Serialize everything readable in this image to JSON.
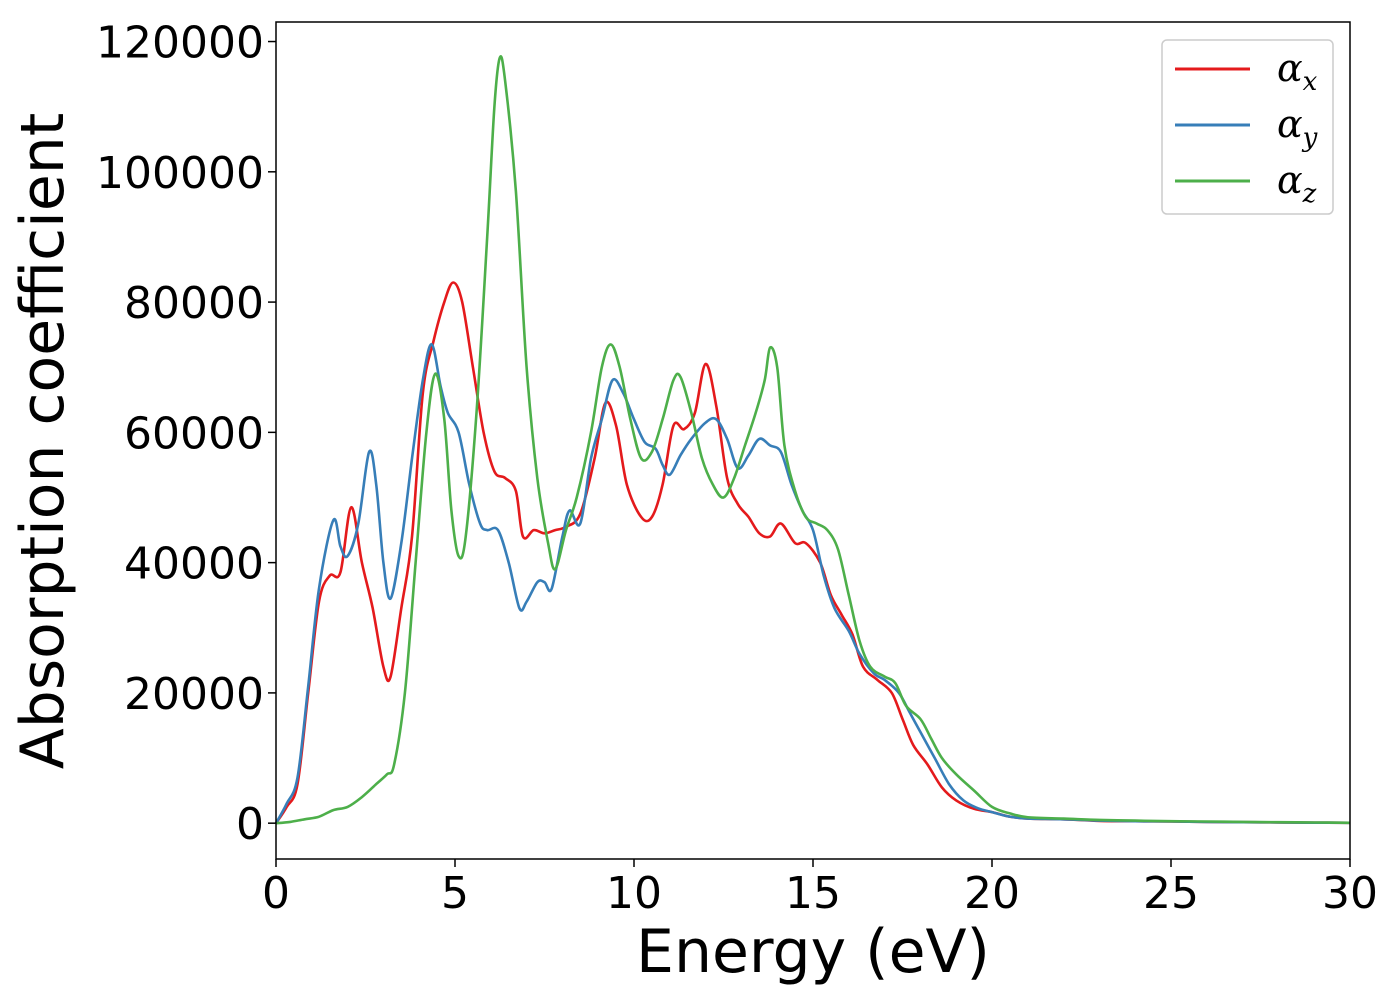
{
  "chart_data": {
    "type": "line",
    "title": "",
    "xlabel": "Energy (eV)",
    "ylabel": "Absorption coefficient",
    "xlim": [
      0,
      30
    ],
    "ylim": [
      -5500,
      123000
    ],
    "xticks": [
      0,
      5,
      10,
      15,
      20,
      25,
      30
    ],
    "yticks": [
      0,
      20000,
      40000,
      60000,
      80000,
      100000,
      120000
    ],
    "grid": false,
    "legend_position": "top-right",
    "series": [
      {
        "name": "α",
        "subscript": "x",
        "color": "#e41a1c",
        "points": [
          [
            0,
            0
          ],
          [
            0.3,
            2500
          ],
          [
            0.6,
            6000
          ],
          [
            0.9,
            20000
          ],
          [
            1.2,
            34000
          ],
          [
            1.5,
            38000
          ],
          [
            1.8,
            38500
          ],
          [
            2.1,
            48500
          ],
          [
            2.4,
            40000
          ],
          [
            2.7,
            33000
          ],
          [
            3.0,
            24000
          ],
          [
            3.2,
            22500
          ],
          [
            3.5,
            33000
          ],
          [
            3.8,
            44000
          ],
          [
            4.1,
            66000
          ],
          [
            4.4,
            74000
          ],
          [
            4.7,
            80000
          ],
          [
            4.95,
            83000
          ],
          [
            5.2,
            80000
          ],
          [
            5.5,
            70000
          ],
          [
            5.8,
            60000
          ],
          [
            6.1,
            54000
          ],
          [
            6.4,
            53000
          ],
          [
            6.7,
            51000
          ],
          [
            6.9,
            44000
          ],
          [
            7.2,
            45000
          ],
          [
            7.5,
            44500
          ],
          [
            7.8,
            45000
          ],
          [
            8.1,
            45500
          ],
          [
            8.5,
            47500
          ],
          [
            8.9,
            56000
          ],
          [
            9.2,
            64500
          ],
          [
            9.5,
            61000
          ],
          [
            9.8,
            52000
          ],
          [
            10.2,
            47000
          ],
          [
            10.5,
            47000
          ],
          [
            10.8,
            52000
          ],
          [
            11.1,
            61000
          ],
          [
            11.4,
            60500
          ],
          [
            11.7,
            63000
          ],
          [
            12.0,
            70500
          ],
          [
            12.3,
            64000
          ],
          [
            12.6,
            53000
          ],
          [
            12.9,
            49000
          ],
          [
            13.2,
            47000
          ],
          [
            13.5,
            44500
          ],
          [
            13.8,
            44000
          ],
          [
            14.1,
            46000
          ],
          [
            14.5,
            43000
          ],
          [
            14.8,
            43000
          ],
          [
            15.2,
            40000
          ],
          [
            15.5,
            35000
          ],
          [
            15.8,
            32000
          ],
          [
            16.1,
            29000
          ],
          [
            16.4,
            24000
          ],
          [
            16.8,
            22000
          ],
          [
            17.2,
            20000
          ],
          [
            17.5,
            16000
          ],
          [
            17.8,
            12000
          ],
          [
            18.2,
            9000
          ],
          [
            18.6,
            5500
          ],
          [
            19.0,
            3500
          ],
          [
            19.5,
            2200
          ],
          [
            20.0,
            1700
          ],
          [
            20.5,
            1000
          ],
          [
            21.0,
            700
          ],
          [
            22,
            600
          ],
          [
            23,
            350
          ],
          [
            24,
            300
          ],
          [
            25,
            250
          ],
          [
            26,
            200
          ],
          [
            27,
            150
          ],
          [
            28,
            120
          ],
          [
            29,
            80
          ],
          [
            30,
            50
          ]
        ]
      },
      {
        "name": "α",
        "subscript": "y",
        "color": "#377eb8",
        "points": [
          [
            0,
            0
          ],
          [
            0.3,
            3000
          ],
          [
            0.6,
            7000
          ],
          [
            0.9,
            21000
          ],
          [
            1.2,
            36000
          ],
          [
            1.6,
            46500
          ],
          [
            1.8,
            42500
          ],
          [
            2.0,
            41000
          ],
          [
            2.3,
            46000
          ],
          [
            2.6,
            57000
          ],
          [
            2.8,
            52000
          ],
          [
            3.0,
            40000
          ],
          [
            3.2,
            34500
          ],
          [
            3.5,
            43000
          ],
          [
            3.8,
            56000
          ],
          [
            4.1,
            68000
          ],
          [
            4.35,
            73500
          ],
          [
            4.6,
            67000
          ],
          [
            4.8,
            63000
          ],
          [
            5.1,
            60000
          ],
          [
            5.4,
            52000
          ],
          [
            5.7,
            46000
          ],
          [
            5.9,
            45000
          ],
          [
            6.2,
            45000
          ],
          [
            6.5,
            40000
          ],
          [
            6.8,
            33000
          ],
          [
            7.0,
            34000
          ],
          [
            7.3,
            37000
          ],
          [
            7.5,
            37000
          ],
          [
            7.7,
            36000
          ],
          [
            8.0,
            44000
          ],
          [
            8.2,
            48000
          ],
          [
            8.5,
            46000
          ],
          [
            8.8,
            56000
          ],
          [
            9.1,
            62000
          ],
          [
            9.4,
            68000
          ],
          [
            9.7,
            66000
          ],
          [
            10.0,
            62000
          ],
          [
            10.3,
            58500
          ],
          [
            10.6,
            57500
          ],
          [
            10.8,
            55000
          ],
          [
            11.0,
            53500
          ],
          [
            11.3,
            56500
          ],
          [
            11.6,
            59000
          ],
          [
            12.0,
            61500
          ],
          [
            12.3,
            62000
          ],
          [
            12.6,
            59000
          ],
          [
            12.9,
            54500
          ],
          [
            13.2,
            56500
          ],
          [
            13.5,
            59000
          ],
          [
            13.8,
            58000
          ],
          [
            14.1,
            57000
          ],
          [
            14.4,
            52000
          ],
          [
            14.7,
            48000
          ],
          [
            15.0,
            45000
          ],
          [
            15.3,
            38000
          ],
          [
            15.6,
            33000
          ],
          [
            16.0,
            29500
          ],
          [
            16.3,
            26000
          ],
          [
            16.7,
            23000
          ],
          [
            17.0,
            22000
          ],
          [
            17.4,
            20000
          ],
          [
            17.7,
            17000
          ],
          [
            18.0,
            14000
          ],
          [
            18.4,
            10000
          ],
          [
            18.8,
            6000
          ],
          [
            19.2,
            3500
          ],
          [
            19.6,
            2300
          ],
          [
            20.0,
            1700
          ],
          [
            20.5,
            1000
          ],
          [
            21.0,
            700
          ],
          [
            22,
            600
          ],
          [
            23,
            400
          ],
          [
            24,
            300
          ],
          [
            25,
            250
          ],
          [
            26,
            200
          ],
          [
            27,
            150
          ],
          [
            28,
            120
          ],
          [
            29,
            80
          ],
          [
            30,
            50
          ]
        ]
      },
      {
        "name": "α",
        "subscript": "z",
        "color": "#4daf4a",
        "points": [
          [
            0,
            0
          ],
          [
            0.4,
            200
          ],
          [
            0.8,
            600
          ],
          [
            1.2,
            1000
          ],
          [
            1.6,
            2000
          ],
          [
            2.0,
            2500
          ],
          [
            2.4,
            4000
          ],
          [
            2.8,
            6000
          ],
          [
            3.1,
            7500
          ],
          [
            3.3,
            9000
          ],
          [
            3.6,
            20000
          ],
          [
            3.9,
            40000
          ],
          [
            4.2,
            60000
          ],
          [
            4.45,
            69000
          ],
          [
            4.7,
            62000
          ],
          [
            4.9,
            48000
          ],
          [
            5.1,
            41000
          ],
          [
            5.3,
            44000
          ],
          [
            5.6,
            63000
          ],
          [
            5.9,
            90000
          ],
          [
            6.1,
            110000
          ],
          [
            6.25,
            117500
          ],
          [
            6.4,
            114000
          ],
          [
            6.7,
            97000
          ],
          [
            7.0,
            70000
          ],
          [
            7.3,
            53000
          ],
          [
            7.6,
            43000
          ],
          [
            7.8,
            39000
          ],
          [
            8.1,
            45000
          ],
          [
            8.4,
            50000
          ],
          [
            8.8,
            60000
          ],
          [
            9.1,
            70000
          ],
          [
            9.35,
            73500
          ],
          [
            9.6,
            70000
          ],
          [
            9.9,
            62000
          ],
          [
            10.2,
            56000
          ],
          [
            10.5,
            57000
          ],
          [
            10.8,
            62000
          ],
          [
            11.1,
            68000
          ],
          [
            11.3,
            68500
          ],
          [
            11.6,
            63000
          ],
          [
            11.9,
            56000
          ],
          [
            12.2,
            52000
          ],
          [
            12.5,
            50000
          ],
          [
            12.8,
            53000
          ],
          [
            13.1,
            58000
          ],
          [
            13.4,
            63000
          ],
          [
            13.65,
            68000
          ],
          [
            13.8,
            73000
          ],
          [
            14.0,
            70000
          ],
          [
            14.2,
            58000
          ],
          [
            14.5,
            51000
          ],
          [
            14.8,
            47000
          ],
          [
            15.1,
            46000
          ],
          [
            15.4,
            45000
          ],
          [
            15.7,
            42000
          ],
          [
            16.0,
            35000
          ],
          [
            16.3,
            28000
          ],
          [
            16.6,
            24000
          ],
          [
            17.0,
            22500
          ],
          [
            17.3,
            21500
          ],
          [
            17.6,
            18000
          ],
          [
            18.0,
            16000
          ],
          [
            18.3,
            13000
          ],
          [
            18.6,
            10000
          ],
          [
            19.0,
            7500
          ],
          [
            19.5,
            5000
          ],
          [
            20.0,
            2500
          ],
          [
            20.5,
            1500
          ],
          [
            21.0,
            900
          ],
          [
            22,
            700
          ],
          [
            23,
            500
          ],
          [
            24,
            400
          ],
          [
            25,
            300
          ],
          [
            26,
            250
          ],
          [
            27,
            200
          ],
          [
            28,
            150
          ],
          [
            29,
            100
          ],
          [
            30,
            60
          ]
        ]
      }
    ]
  }
}
